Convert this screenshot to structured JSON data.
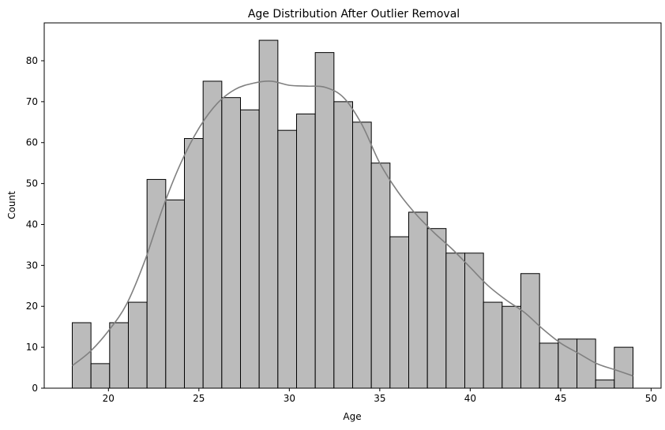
{
  "chart_data": {
    "type": "bar",
    "title": "Age Distribution After Outlier Removal",
    "xlabel": "Age",
    "ylabel": "Count",
    "xlim": [
      16.45,
      50.55
    ],
    "ylim": [
      0,
      89.25
    ],
    "xticks": [
      20,
      25,
      30,
      35,
      40,
      45,
      50
    ],
    "yticks": [
      0,
      10,
      20,
      30,
      40,
      50,
      60,
      70,
      80
    ],
    "grid": false,
    "bins": {
      "start": 18,
      "end": 49,
      "counts": [
        16,
        6,
        16,
        21,
        51,
        46,
        61,
        75,
        71,
        68,
        85,
        63,
        67,
        82,
        70,
        65,
        55,
        37,
        43,
        39,
        33,
        33,
        21,
        20,
        28,
        11,
        12,
        12,
        2,
        10
      ]
    },
    "bar_color": "#bbbbbb",
    "kde": {
      "color": "#808080",
      "x": [
        18,
        19,
        20,
        21,
        22,
        23,
        24,
        25,
        26,
        27,
        28,
        29,
        30,
        31,
        32,
        33,
        34,
        35,
        36,
        37,
        38,
        39,
        40,
        41,
        42,
        43,
        44,
        45,
        46,
        47,
        48,
        49
      ],
      "y": [
        5.5,
        9,
        14,
        20.5,
        31,
        44,
        55,
        63.5,
        69.5,
        73,
        74.5,
        75,
        74,
        73.8,
        73.5,
        71,
        64.5,
        55,
        48,
        42.5,
        38,
        34,
        29.5,
        25,
        21.5,
        18.5,
        14.5,
        11,
        8.5,
        6,
        4.5,
        3
      ]
    }
  }
}
